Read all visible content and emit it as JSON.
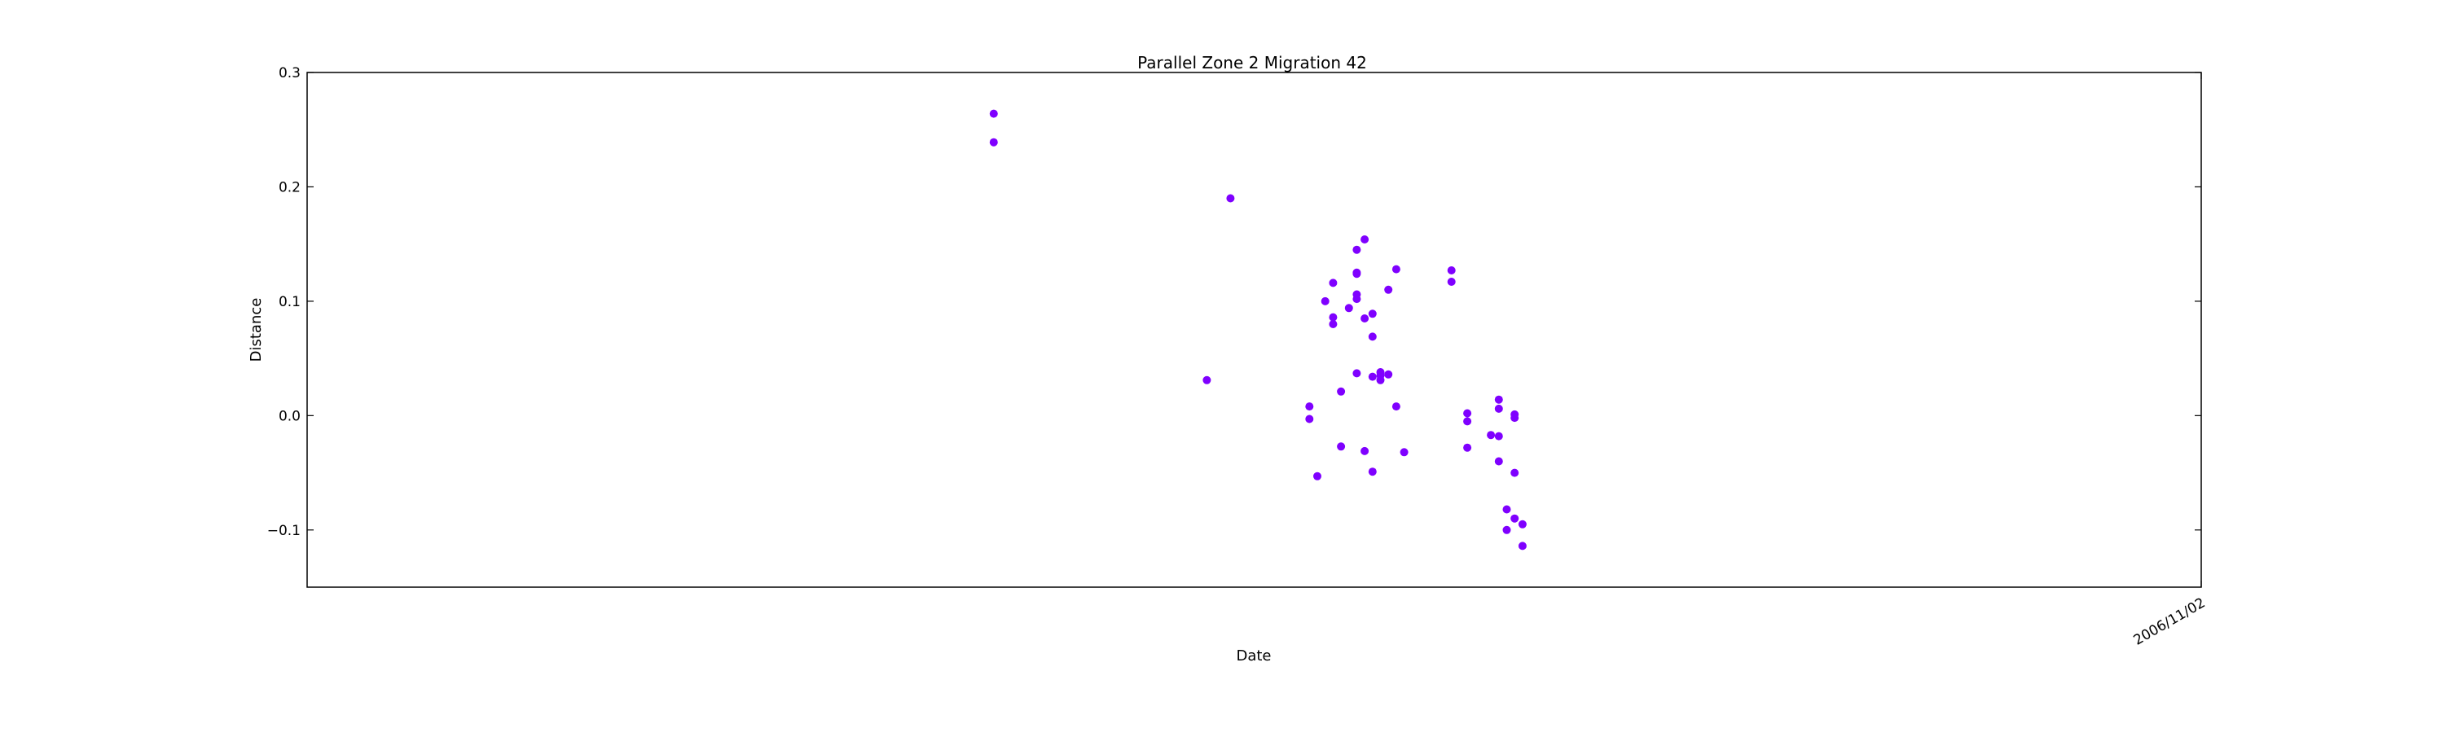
{
  "chart_data": {
    "type": "scatter",
    "title": "Parallel Zone 2 Migration 42",
    "xlabel": "Date",
    "ylabel": "Distance",
    "ylim": [
      -0.15,
      0.3
    ],
    "y_ticks": [
      -0.1,
      0.0,
      0.1,
      0.2,
      0.3
    ],
    "y_tick_labels": [
      "−0.1",
      "0.0",
      "0.1",
      "0.2",
      "0.3"
    ],
    "xlim": [
      "2006-10-23",
      "2006-11-02"
    ],
    "x_ticks": [
      "2006-11-02"
    ],
    "x_tick_labels": [
      "2006/11/02"
    ],
    "grid": false,
    "marker_color": "#7f00ff",
    "points": [
      {
        "x": "2006-10-26T15:00",
        "y": 0.264
      },
      {
        "x": "2006-10-26T15:00",
        "y": 0.239
      },
      {
        "x": "2006-10-27T18:00",
        "y": 0.031
      },
      {
        "x": "2006-10-27T21:00",
        "y": 0.19
      },
      {
        "x": "2006-10-28T07:00",
        "y": 0.008
      },
      {
        "x": "2006-10-28T07:00",
        "y": -0.003
      },
      {
        "x": "2006-10-28T08:00",
        "y": -0.053
      },
      {
        "x": "2006-10-28T09:00",
        "y": 0.1
      },
      {
        "x": "2006-10-28T10:00",
        "y": 0.086
      },
      {
        "x": "2006-10-28T10:00",
        "y": 0.08
      },
      {
        "x": "2006-10-28T10:00",
        "y": 0.116
      },
      {
        "x": "2006-10-28T11:00",
        "y": 0.021
      },
      {
        "x": "2006-10-28T11:00",
        "y": -0.027
      },
      {
        "x": "2006-10-28T12:00",
        "y": 0.094
      },
      {
        "x": "2006-10-28T13:00",
        "y": 0.125
      },
      {
        "x": "2006-10-28T13:00",
        "y": 0.145
      },
      {
        "x": "2006-10-28T13:00",
        "y": 0.124
      },
      {
        "x": "2006-10-28T13:00",
        "y": 0.106
      },
      {
        "x": "2006-10-28T13:00",
        "y": 0.102
      },
      {
        "x": "2006-10-28T13:00",
        "y": 0.037
      },
      {
        "x": "2006-10-28T14:00",
        "y": -0.031
      },
      {
        "x": "2006-10-28T14:00",
        "y": 0.154
      },
      {
        "x": "2006-10-28T14:00",
        "y": 0.085
      },
      {
        "x": "2006-10-28T15:00",
        "y": 0.034
      },
      {
        "x": "2006-10-28T15:00",
        "y": 0.089
      },
      {
        "x": "2006-10-28T15:00",
        "y": -0.049
      },
      {
        "x": "2006-10-28T15:00",
        "y": 0.069
      },
      {
        "x": "2006-10-28T16:00",
        "y": 0.038
      },
      {
        "x": "2006-10-28T16:00",
        "y": 0.035
      },
      {
        "x": "2006-10-28T16:00",
        "y": 0.031
      },
      {
        "x": "2006-10-28T17:00",
        "y": 0.11
      },
      {
        "x": "2006-10-28T17:00",
        "y": 0.036
      },
      {
        "x": "2006-10-28T18:00",
        "y": 0.128
      },
      {
        "x": "2006-10-28T18:00",
        "y": 0.008
      },
      {
        "x": "2006-10-28T19:00",
        "y": -0.032
      },
      {
        "x": "2006-10-29T01:00",
        "y": 0.127
      },
      {
        "x": "2006-10-29T01:00",
        "y": 0.117
      },
      {
        "x": "2006-10-29T03:00",
        "y": 0.002
      },
      {
        "x": "2006-10-29T03:00",
        "y": -0.005
      },
      {
        "x": "2006-10-29T03:00",
        "y": -0.028
      },
      {
        "x": "2006-10-29T06:00",
        "y": -0.017
      },
      {
        "x": "2006-10-29T07:00",
        "y": -0.018
      },
      {
        "x": "2006-10-29T07:00",
        "y": -0.04
      },
      {
        "x": "2006-10-29T07:00",
        "y": 0.014
      },
      {
        "x": "2006-10-29T07:00",
        "y": 0.006
      },
      {
        "x": "2006-10-29T08:00",
        "y": -0.1
      },
      {
        "x": "2006-10-29T08:00",
        "y": -0.082
      },
      {
        "x": "2006-10-29T09:00",
        "y": 0.001
      },
      {
        "x": "2006-10-29T09:00",
        "y": -0.002
      },
      {
        "x": "2006-10-29T09:00",
        "y": -0.05
      },
      {
        "x": "2006-10-29T09:00",
        "y": -0.09
      },
      {
        "x": "2006-10-29T10:00",
        "y": -0.095
      },
      {
        "x": "2006-10-29T10:00",
        "y": -0.114
      }
    ]
  }
}
